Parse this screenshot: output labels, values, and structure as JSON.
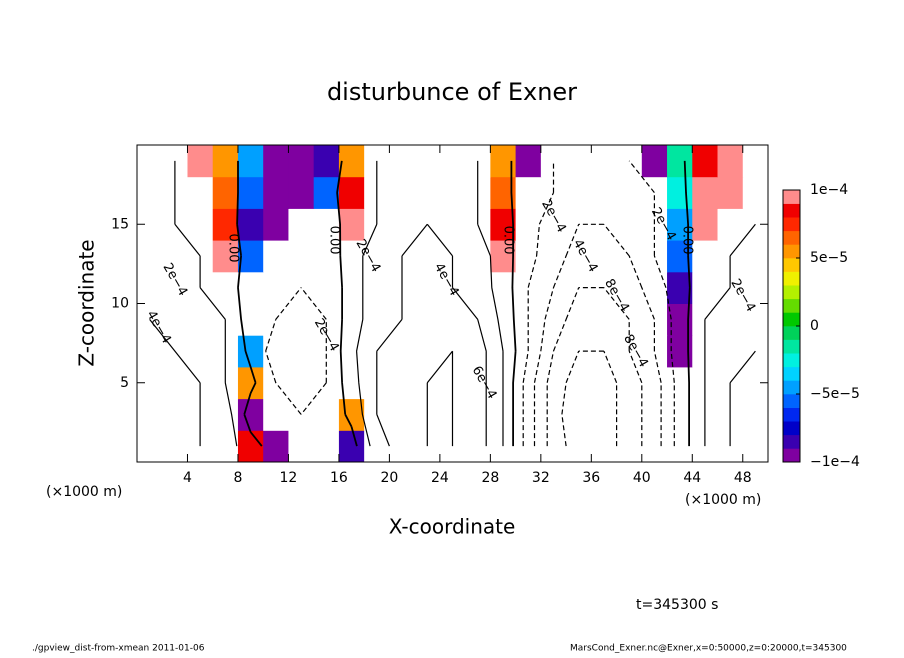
{
  "chart_data": {
    "type": "contour",
    "title": "disturbunce of Exner",
    "xlabel": "X-coordinate",
    "ylabel": "Z-coordinate",
    "x_unit_label": "(×1000 m)",
    "y_unit_label": "(×1000 m)",
    "time_label": "t=345300 s",
    "footer_left": "./gpview_dist-from-xmean   2011-01-06",
    "footer_right": "MarsCond_Exner.nc@Exner,x=0:50000,z=0:20000,t=345300",
    "xlim": [
      0,
      50
    ],
    "ylim": [
      0,
      20
    ],
    "xticks": [
      4,
      8,
      12,
      16,
      20,
      24,
      28,
      32,
      36,
      40,
      44,
      48
    ],
    "yticks": [
      5,
      10,
      15
    ],
    "x": [
      1,
      3,
      5,
      7,
      9,
      11,
      13,
      15,
      17,
      19,
      21,
      23,
      25,
      27,
      29,
      31,
      33,
      35,
      37,
      39,
      41,
      43,
      45,
      47,
      49
    ],
    "y": [
      1,
      3,
      5,
      7,
      9,
      11,
      13,
      15,
      17,
      19
    ],
    "z": [
      [
        0.0005,
        0.0005,
        0.0004,
        0.0003,
        8e-05,
        -0.0001,
        -0.0002,
        -0.0002,
        -8e-05,
        0.0003,
        0.0005,
        0.0006,
        0.0006,
        0.0005,
        0.0002,
        -0.0003,
        -0.0007,
        -0.0009,
        -0.0009,
        -0.0007,
        -0.0005,
        -0.00012,
        0.0002,
        0.0004,
        0.0004
      ],
      [
        0.0005,
        0.0005,
        0.0004,
        0.0003,
        -0.0001,
        -0.0002,
        -0.0002,
        -0.00015,
        5e-05,
        0.0004,
        0.0005,
        0.0006,
        0.0006,
        0.0005,
        0.0002,
        -0.0003,
        -0.0007,
        -0.001,
        -0.0009,
        -0.0007,
        -0.0005,
        -0.00012,
        0.0002,
        0.0004,
        0.0004
      ],
      [
        0.0004,
        0.0004,
        0.0004,
        0.0002,
        5e-05,
        -0.0002,
        -0.0003,
        -0.0002,
        0.00012,
        0.0004,
        0.0005,
        0.0006,
        0.0006,
        0.0005,
        0.0002,
        -0.0003,
        -0.0007,
        -0.0009,
        -0.0009,
        -0.0007,
        -0.0005,
        -0.00012,
        0.0002,
        0.0004,
        0.0004
      ],
      [
        0.0004,
        0.0004,
        0.0003,
        0.0002,
        -5e-05,
        -0.0003,
        -0.0003,
        -0.0002,
        0.00015,
        0.0004,
        0.0005,
        0.0005,
        0.0006,
        0.0005,
        0.0002,
        -0.0002,
        -0.0006,
        -0.0008,
        -0.0008,
        -0.0006,
        -0.0004,
        -0.0001,
        0.0002,
        0.0003,
        0.0004
      ],
      [
        0.0004,
        0.0003,
        0.0003,
        0.0002,
        -0.00012,
        -0.0002,
        -0.0003,
        -0.0002,
        0.00012,
        0.0003,
        0.0004,
        0.0005,
        0.0005,
        0.0004,
        0.00015,
        -0.0002,
        -0.0005,
        -0.0007,
        -0.0007,
        -0.0006,
        -0.0004,
        -0.0001,
        0.0002,
        0.0003,
        0.0003
      ],
      [
        0.0003,
        0.0003,
        0.0002,
        0.00012,
        -0.00012,
        -0.0002,
        -0.0002,
        -0.0002,
        0.00012,
        0.0003,
        0.0004,
        0.0004,
        0.0004,
        0.0003,
        0.00012,
        -0.0002,
        -0.0004,
        -0.0006,
        -0.0006,
        -0.0005,
        -0.0003,
        -8e-05,
        0.00012,
        0.0002,
        0.0003
      ],
      [
        0.0002,
        0.0002,
        0.0002,
        0.0001,
        -6e-05,
        -0.00015,
        -0.0002,
        -0.00015,
        0.00012,
        0.0003,
        0.0004,
        0.0004,
        0.0004,
        0.0003,
        0.0001,
        -0.00015,
        -0.0003,
        -0.0005,
        -0.0005,
        -0.0004,
        -0.0002,
        -6e-05,
        0.00012,
        0.0002,
        0.0002
      ],
      [
        0.0002,
        0.0002,
        0.00015,
        7e-05,
        -8e-05,
        -0.0001,
        -0.0002,
        -0.00012,
        0.0001,
        0.0002,
        0.0003,
        0.0004,
        0.0003,
        0.0002,
        8e-05,
        -0.00012,
        -0.0003,
        -0.0004,
        -0.0004,
        -0.0003,
        -0.0002,
        -5e-05,
        0.0001,
        0.00015,
        0.0002
      ],
      [
        0.0003,
        0.0002,
        0.00012,
        6e-05,
        -6e-05,
        -0.0001,
        -9e-05,
        -6e-05,
        8e-05,
        0.0002,
        0.0003,
        0.0003,
        0.0003,
        0.0002,
        6e-05,
        -0.00012,
        -0.0002,
        -0.0003,
        -0.0003,
        -0.0003,
        -0.0002,
        -3e-05,
        9e-05,
        0.0001,
        0.00012
      ],
      [
        0.0003,
        0.0002,
        0.0001,
        5e-05,
        -5e-05,
        -0.0001,
        -0.0001,
        -8e-05,
        5e-05,
        0.0002,
        0.0003,
        0.0003,
        0.0003,
        0.0002,
        5e-05,
        -0.0001,
        -0.0002,
        -0.0003,
        -0.0003,
        -0.0002,
        -0.0001,
        -2e-05,
        8e-05,
        0.0001,
        0.00015
      ]
    ],
    "contour_levels": [
      -0.0008,
      -0.0006,
      -0.0004,
      -0.0002,
      0,
      0.0002,
      0.0004,
      0.0006
    ],
    "colorbar": {
      "clim": [
        -0.0001,
        0.0001
      ],
      "colors": [
        "#7f00a0",
        "#3a00b0",
        "#0000c8",
        "#0028f0",
        "#0064ff",
        "#00a0ff",
        "#00d2ff",
        "#00f0e0",
        "#00e6a0",
        "#00d25a",
        "#00c800",
        "#64dc00",
        "#b4f000",
        "#f0f000",
        "#ffc800",
        "#ff9600",
        "#ff6400",
        "#ff2800",
        "#f00000",
        "#ff8c8c"
      ],
      "ticks": [
        {
          "value": -0.0001,
          "label": "−1e−4"
        },
        {
          "value": -5e-05,
          "label": "−5e−5"
        },
        0,
        {
          "value": 5e-05,
          "label": "5e−5"
        },
        {
          "value": 0.0001,
          "label": "1e−4"
        }
      ]
    },
    "contour_labels": [
      {
        "text": "0.00",
        "x": 7.6,
        "y": 13.5
      },
      {
        "text": "0.00",
        "x": 15.6,
        "y": 14
      },
      {
        "text": "0.00",
        "x": 29.4,
        "y": 14
      },
      {
        "text": "0.00",
        "x": 43.6,
        "y": 14
      },
      {
        "text": "2e−4",
        "x": 3,
        "y": 11.5
      },
      {
        "text": "2e−4",
        "x": 15,
        "y": 8
      },
      {
        "text": "2e−4",
        "x": 18.3,
        "y": 13
      },
      {
        "text": "2e−4",
        "x": 33,
        "y": 15.5
      },
      {
        "text": "2e−4",
        "x": 41.7,
        "y": 15
      },
      {
        "text": "2e−4",
        "x": 48,
        "y": 10.5
      },
      {
        "text": "4e−4",
        "x": 1.7,
        "y": 8.5
      },
      {
        "text": "4e−4",
        "x": 24.5,
        "y": 11.5
      },
      {
        "text": "4e−4",
        "x": 35.5,
        "y": 13
      },
      {
        "text": "6e−4",
        "x": 27.5,
        "y": 5
      },
      {
        "text": "8e−4",
        "x": 38,
        "y": 10.5
      },
      {
        "text": "8e−4",
        "x": 39.5,
        "y": 7
      }
    ]
  }
}
